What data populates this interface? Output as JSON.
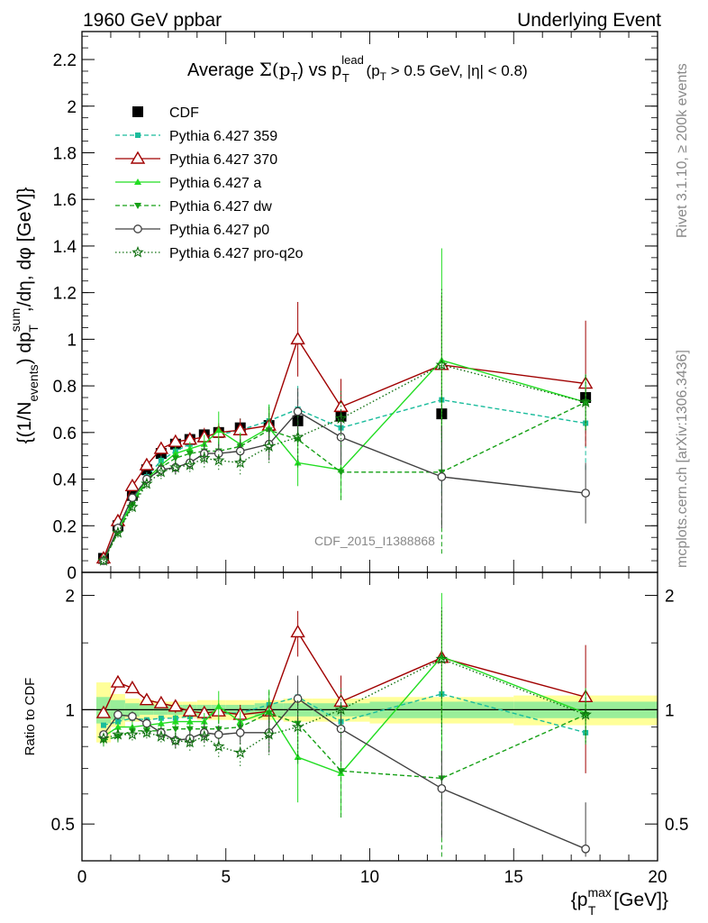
{
  "header": {
    "left": "1960 GeV ppbar",
    "right": "Underlying Event"
  },
  "side": {
    "rivet": "Rivet 3.1.10, ≥ 200k events",
    "mcplots": "mcplots.cern.ch [arXiv:1306.3436]"
  },
  "analysis_id": "CDF_2015_I1388868",
  "chart_data": [
    {
      "panel": "main",
      "type": "line",
      "title": "Average Σ(p_T) vs p_T^lead (p_T > 0.5 GeV, |η| < 0.8)",
      "title_parts": {
        "avg": "Average ",
        "sigma": "Σ(p",
        "t1": "T",
        "mid": ") vs p",
        "lead": "lead",
        "t2": "T",
        "tail_a": " (p",
        "t3": "T",
        "tail_b": " > 0.5 GeV, |η| < 0.8)"
      },
      "ylabel": "{(1/N_events) dp_T^sum/dη, dφ [GeV]}",
      "ylabel_parts": {
        "a": "{(1/N",
        "events": "events",
        "b": ") dp",
        "sum": "sum",
        "t": "T",
        "c": ",/dη, dφ [GeV]}"
      },
      "xlabel": "{p_T^max [GeV]}",
      "xlim": [
        0,
        20
      ],
      "ylim": [
        0,
        2.32
      ],
      "yticks": [
        "0",
        "0.2",
        "0.4",
        "0.6",
        "0.8",
        "1",
        "1.2",
        "1.4",
        "1.6",
        "1.8",
        "2",
        "2.2"
      ],
      "legend_position": "top-left",
      "x": [
        0.75,
        1.25,
        1.75,
        2.25,
        2.75,
        3.25,
        3.75,
        4.25,
        4.75,
        5.5,
        6.5,
        7.5,
        9.0,
        12.5,
        17.5
      ],
      "series": [
        {
          "name": "CDF",
          "color": "#000000",
          "marker": "square",
          "line": "none",
          "values": [
            0.06,
            0.2,
            0.33,
            0.44,
            0.51,
            0.55,
            0.57,
            0.59,
            0.6,
            0.62,
            0.63,
            0.65,
            0.67,
            0.68,
            0.75
          ]
        },
        {
          "name": "Pythia 6.427 359",
          "color": "#1abc9c",
          "marker": "small-square",
          "line": "dashed",
          "values": [
            0.05,
            0.18,
            0.31,
            0.41,
            0.48,
            0.52,
            0.55,
            0.57,
            0.59,
            0.61,
            0.65,
            0.7,
            0.62,
            0.74,
            0.64
          ],
          "errors": [
            0.01,
            0.02,
            0.02,
            0.02,
            0.03,
            0.03,
            0.03,
            0.04,
            0.04,
            0.05,
            0.07,
            0.1,
            0.15,
            0.4,
            0.2
          ]
        },
        {
          "name": "Pythia 6.427 370",
          "color": "#a00000",
          "marker": "open-triangle",
          "line": "solid",
          "values": [
            0.06,
            0.22,
            0.37,
            0.46,
            0.53,
            0.56,
            0.57,
            0.58,
            0.6,
            0.61,
            0.63,
            1.0,
            0.71,
            0.89,
            0.81
          ],
          "errors": [
            0.01,
            0.02,
            0.02,
            0.02,
            0.03,
            0.03,
            0.03,
            0.04,
            0.04,
            0.05,
            0.07,
            0.16,
            0.12,
            0.3,
            0.27
          ]
        },
        {
          "name": "Pythia 6.427 a",
          "color": "#22dd22",
          "marker": "triangle",
          "line": "solid",
          "values": [
            0.05,
            0.18,
            0.3,
            0.4,
            0.46,
            0.51,
            0.53,
            0.55,
            0.61,
            0.55,
            0.62,
            0.47,
            0.44,
            0.91,
            0.73
          ],
          "errors": [
            0.01,
            0.02,
            0.02,
            0.02,
            0.03,
            0.03,
            0.03,
            0.04,
            0.08,
            0.05,
            0.1,
            0.1,
            0.12,
            0.48,
            0.12
          ]
        },
        {
          "name": "Pythia 6.427 dw",
          "color": "#16a016",
          "marker": "down-triangle",
          "line": "dashed",
          "values": [
            0.05,
            0.17,
            0.29,
            0.39,
            0.45,
            0.49,
            0.51,
            0.52,
            0.52,
            0.54,
            0.61,
            0.57,
            0.43,
            0.43,
            0.73
          ],
          "errors": [
            0.01,
            0.02,
            0.02,
            0.02,
            0.03,
            0.03,
            0.03,
            0.04,
            0.04,
            0.05,
            0.1,
            0.12,
            0.12,
            0.35,
            0.12
          ]
        },
        {
          "name": "Pythia 6.427 p0",
          "color": "#404040",
          "marker": "open-circle",
          "line": "solid",
          "values": [
            0.05,
            0.19,
            0.32,
            0.4,
            0.44,
            0.45,
            0.47,
            0.51,
            0.51,
            0.52,
            0.55,
            0.69,
            0.58,
            0.41,
            0.34
          ],
          "errors": [
            0.01,
            0.02,
            0.02,
            0.02,
            0.03,
            0.03,
            0.03,
            0.04,
            0.04,
            0.05,
            0.07,
            0.1,
            0.12,
            0.22,
            0.13
          ]
        },
        {
          "name": "Pythia 6.427 pro-q2o",
          "color": "#107010",
          "marker": "star",
          "line": "dotted",
          "values": [
            0.05,
            0.17,
            0.28,
            0.38,
            0.43,
            0.45,
            0.46,
            0.49,
            0.48,
            0.47,
            0.54,
            0.58,
            0.66,
            0.89,
            0.73
          ],
          "errors": [
            0.01,
            0.02,
            0.02,
            0.02,
            0.03,
            0.03,
            0.03,
            0.04,
            0.04,
            0.05,
            0.07,
            0.1,
            0.12,
            0.33,
            0.12
          ]
        }
      ]
    },
    {
      "panel": "ratio",
      "type": "line",
      "ylabel": "Ratio to CDF",
      "xlabel": "{p_T^max [GeV]}",
      "xlim": [
        0,
        20
      ],
      "ylim": [
        0.4,
        2.3
      ],
      "yscale": "log",
      "yticks": [
        "0.5",
        "1",
        "2"
      ],
      "xticks": [
        "0",
        "5",
        "10",
        "15",
        "20"
      ],
      "reference_line": 1,
      "bin_edges": [
        0.5,
        1.0,
        1.5,
        2.0,
        2.5,
        3.0,
        3.5,
        4.0,
        4.5,
        5.0,
        6.0,
        7.0,
        8.0,
        10.0,
        15.0,
        20.0
      ],
      "band_inner": [
        0.08,
        0.06,
        0.04,
        0.03,
        0.03,
        0.03,
        0.03,
        0.03,
        0.03,
        0.03,
        0.04,
        0.04,
        0.04,
        0.05,
        0.05
      ],
      "band_outer": [
        0.18,
        0.1,
        0.07,
        0.06,
        0.05,
        0.05,
        0.05,
        0.06,
        0.06,
        0.06,
        0.06,
        0.07,
        0.07,
        0.08,
        0.09
      ],
      "x": [
        0.75,
        1.25,
        1.75,
        2.25,
        2.75,
        3.25,
        3.75,
        4.25,
        4.75,
        5.5,
        6.5,
        7.5,
        9.0,
        12.5,
        17.5
      ],
      "series": [
        {
          "name": "Pythia 6.427 359",
          "color": "#1abc9c",
          "marker": "small-square",
          "line": "dashed",
          "values": [
            0.91,
            0.93,
            0.95,
            0.94,
            0.95,
            0.95,
            0.96,
            0.96,
            0.98,
            0.98,
            1.03,
            1.08,
            0.93,
            1.1,
            0.87
          ]
        },
        {
          "name": "Pythia 6.427 370",
          "color": "#a00000",
          "marker": "open-triangle",
          "line": "solid",
          "values": [
            0.98,
            1.18,
            1.14,
            1.06,
            1.04,
            1.02,
            0.99,
            0.98,
            0.99,
            0.97,
            0.99,
            1.6,
            1.05,
            1.37,
            1.08
          ],
          "errors": [
            0.02,
            0.03,
            0.03,
            0.03,
            0.03,
            0.04,
            0.04,
            0.04,
            0.05,
            0.06,
            0.08,
            0.22,
            0.18,
            0.45,
            0.4
          ]
        },
        {
          "name": "Pythia 6.427 a",
          "color": "#22dd22",
          "marker": "triangle",
          "line": "solid",
          "values": [
            0.85,
            0.9,
            0.9,
            0.91,
            0.92,
            0.93,
            0.93,
            0.93,
            1.02,
            0.93,
            0.99,
            0.75,
            0.68,
            1.38,
            0.98
          ],
          "errors": [
            0.03,
            0.03,
            0.03,
            0.03,
            0.03,
            0.04,
            0.04,
            0.05,
            0.1,
            0.06,
            0.14,
            0.18,
            0.15,
            0.65,
            0.16
          ]
        },
        {
          "name": "Pythia 6.427 dw",
          "color": "#16a016",
          "marker": "down-triangle",
          "line": "dashed",
          "values": [
            0.83,
            0.85,
            0.88,
            0.88,
            0.88,
            0.89,
            0.89,
            0.89,
            0.89,
            0.9,
            0.98,
            0.92,
            0.69,
            0.66,
            0.97
          ],
          "errors": [
            0.03,
            0.03,
            0.03,
            0.03,
            0.03,
            0.04,
            0.04,
            0.05,
            0.05,
            0.06,
            0.14,
            0.2,
            0.17,
            0.5,
            0.16
          ]
        },
        {
          "name": "Pythia 6.427 p0",
          "color": "#404040",
          "marker": "open-circle",
          "line": "solid",
          "values": [
            0.86,
            0.97,
            0.96,
            0.92,
            0.87,
            0.83,
            0.84,
            0.87,
            0.86,
            0.87,
            0.87,
            1.07,
            0.89,
            0.62,
            0.43
          ],
          "errors": [
            0.02,
            0.03,
            0.03,
            0.03,
            0.03,
            0.04,
            0.04,
            0.05,
            0.05,
            0.06,
            0.1,
            0.16,
            0.16,
            0.16,
            0.14
          ]
        },
        {
          "name": "Pythia 6.427 pro-q2o",
          "color": "#107010",
          "marker": "star",
          "line": "dotted",
          "values": [
            0.84,
            0.86,
            0.86,
            0.87,
            0.85,
            0.83,
            0.82,
            0.85,
            0.8,
            0.77,
            0.86,
            0.9,
            1.0,
            1.36,
            0.97
          ],
          "errors": [
            0.02,
            0.03,
            0.03,
            0.03,
            0.03,
            0.04,
            0.04,
            0.05,
            0.05,
            0.06,
            0.1,
            0.16,
            0.15,
            0.5,
            0.15
          ]
        }
      ]
    }
  ]
}
